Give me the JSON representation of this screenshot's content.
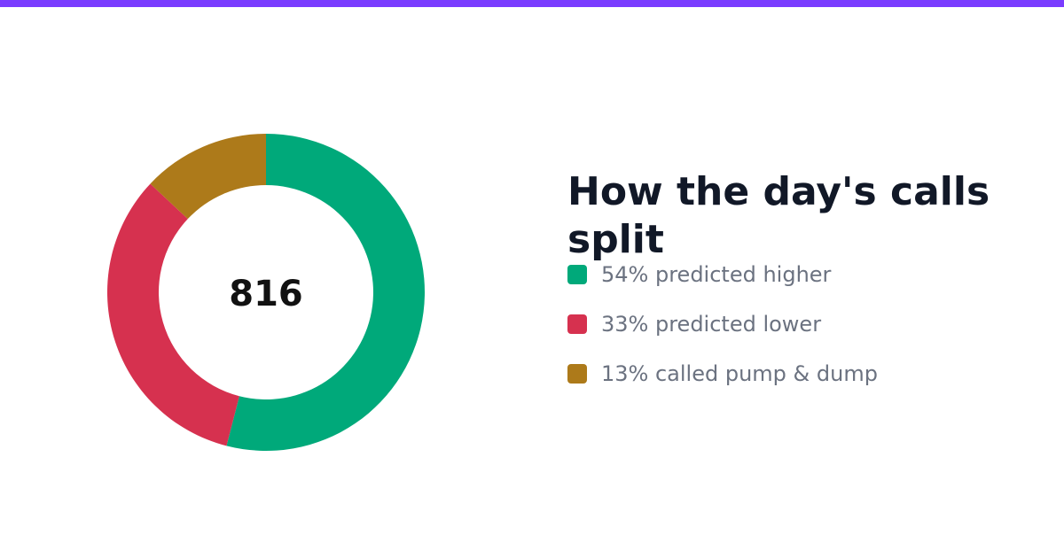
{
  "colors": {
    "accent_bar": "#7a3cff",
    "background": "#ffffff"
  },
  "title": "How the day's calls split",
  "center_total": "816",
  "legend": [
    {
      "label": "54% predicted higher",
      "color": "#00a97a"
    },
    {
      "label": "33% predicted lower",
      "color": "#d6314f"
    },
    {
      "label": "13% called pump & dump",
      "color": "#ad7a1a"
    }
  ],
  "chart_data": {
    "type": "pie",
    "variant": "donut",
    "title": "How the day's calls split",
    "total": 816,
    "unit": "percent",
    "categories": [
      "predicted higher",
      "predicted lower",
      "called pump & dump"
    ],
    "values": [
      54,
      33,
      13
    ],
    "colors": [
      "#00a97a",
      "#d6314f",
      "#ad7a1a"
    ],
    "legend_position": "right"
  }
}
